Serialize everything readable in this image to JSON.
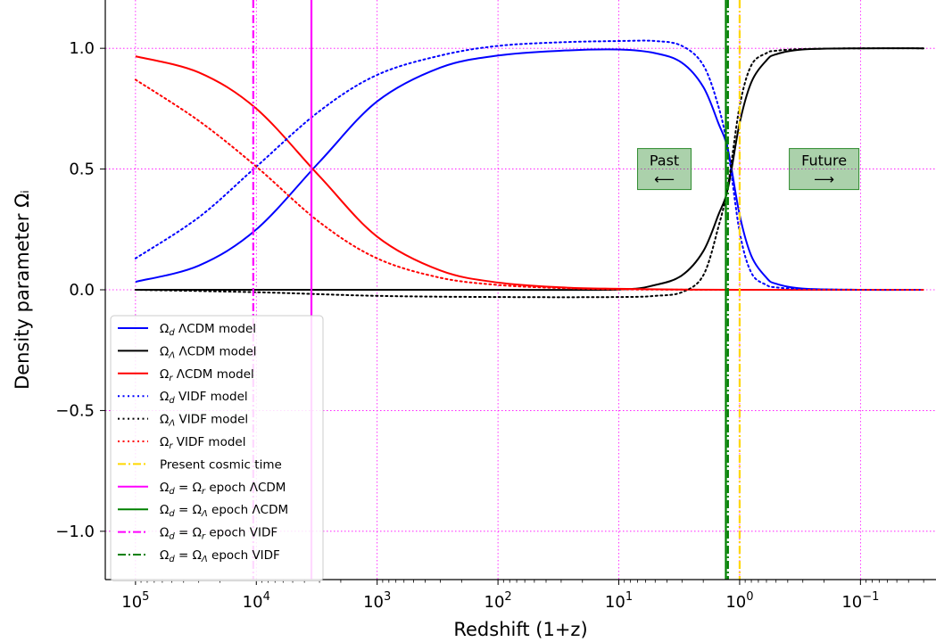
{
  "chart_data": {
    "type": "line",
    "xlabel": "Redshift (1+z)",
    "ylabel": "Density parameter Ωᵢ",
    "x_scale": "log",
    "x_reversed": true,
    "xlim": [
      177827.94,
      0.02371
    ],
    "ylim": [
      -1.2,
      1.2
    ],
    "grid": true,
    "grid_color": "#ff00ff",
    "legend_position": "lower-left",
    "x_ticks": [
      {
        "value": 100000,
        "base": "10",
        "exp": "5"
      },
      {
        "value": 10000,
        "base": "10",
        "exp": "4"
      },
      {
        "value": 1000,
        "base": "10",
        "exp": "3"
      },
      {
        "value": 100,
        "base": "10",
        "exp": "2"
      },
      {
        "value": 10,
        "base": "10",
        "exp": "1"
      },
      {
        "value": 1,
        "base": "10",
        "exp": "0"
      },
      {
        "value": 0.1,
        "base": "10",
        "exp": "−1"
      }
    ],
    "y_ticks": [
      {
        "value": 1.0,
        "label": "1.0"
      },
      {
        "value": 0.5,
        "label": "0.5"
      },
      {
        "value": 0.0,
        "label": "0.0"
      },
      {
        "value": -0.5,
        "label": "−0.5"
      },
      {
        "value": -1.0,
        "label": "−1.0"
      }
    ],
    "series": [
      {
        "name": "Ω_d ΛCDM model",
        "color": "#0000ff",
        "style": "solid",
        "x": [
          100000,
          30000,
          10000,
          3000,
          1000,
          300,
          100,
          30,
          10,
          5,
          3,
          2,
          1.5,
          1.25,
          1,
          0.8,
          0.6,
          0.5,
          0.3,
          0.1,
          0.03
        ],
        "y": [
          0.033,
          0.1,
          0.25,
          0.53,
          0.78,
          0.92,
          0.97,
          0.99,
          0.995,
          0.98,
          0.94,
          0.84,
          0.69,
          0.58,
          0.31,
          0.14,
          0.05,
          0.025,
          0.005,
          0.0,
          0.0
        ]
      },
      {
        "name": "Ω_Λ ΛCDM model",
        "color": "#000000",
        "style": "solid",
        "x": [
          100000,
          1000,
          100,
          10,
          5,
          3,
          2,
          1.5,
          1.25,
          1,
          0.8,
          0.6,
          0.5,
          0.3,
          0.1,
          0.03
        ],
        "y": [
          0.0,
          0.0,
          0.0,
          0.001,
          0.02,
          0.06,
          0.16,
          0.31,
          0.42,
          0.69,
          0.86,
          0.95,
          0.975,
          0.995,
          1.0,
          1.0
        ]
      },
      {
        "name": "Ω_r ΛCDM model",
        "color": "#ff0000",
        "style": "solid",
        "x": [
          100000,
          30000,
          10000,
          3000,
          1000,
          300,
          100,
          30,
          10,
          3,
          1,
          0.1,
          0.03
        ],
        "y": [
          0.967,
          0.9,
          0.75,
          0.47,
          0.22,
          0.08,
          0.03,
          0.01,
          0.004,
          0.001,
          0.0,
          0.0,
          0.0
        ]
      },
      {
        "name": "Ω_d VIDF model",
        "color": "#0000ff",
        "style": "dotted",
        "x": [
          100000,
          30000,
          10000,
          3000,
          1000,
          300,
          100,
          30,
          10,
          5,
          3,
          2,
          1.5,
          1.25,
          1,
          0.8,
          0.6,
          0.5,
          0.3,
          0.1,
          0.03
        ],
        "y": [
          0.13,
          0.3,
          0.51,
          0.74,
          0.89,
          0.97,
          1.01,
          1.025,
          1.03,
          1.03,
          1.01,
          0.93,
          0.76,
          0.58,
          0.24,
          0.07,
          0.02,
          0.01,
          0.003,
          0.0,
          0.0
        ]
      },
      {
        "name": "Ω_Λ VIDF model",
        "color": "#000000",
        "style": "dotted",
        "x": [
          100000,
          10000,
          1000,
          100,
          10,
          5,
          3,
          2,
          1.5,
          1.25,
          1,
          0.8,
          0.6,
          0.5,
          0.3,
          0.1,
          0.03
        ],
        "y": [
          0.0,
          -0.01,
          -0.025,
          -0.03,
          -0.03,
          -0.025,
          -0.01,
          0.06,
          0.26,
          0.43,
          0.76,
          0.93,
          0.98,
          0.99,
          0.997,
          1.0,
          1.0
        ]
      },
      {
        "name": "Ω_r VIDF model",
        "color": "#ff0000",
        "style": "dotted",
        "x": [
          100000,
          30000,
          10000,
          3000,
          1000,
          300,
          100,
          30,
          10,
          3,
          1,
          0.1,
          0.03
        ],
        "y": [
          0.87,
          0.7,
          0.51,
          0.28,
          0.13,
          0.05,
          0.02,
          0.007,
          0.002,
          0.0005,
          0.0,
          0.0,
          0.0
        ]
      }
    ],
    "vlines": [
      {
        "name": "Present cosmic time",
        "x": 1.0,
        "color": "#ffd700",
        "style": "dashdot"
      },
      {
        "name": "Ω_d = Ω_r epoch ΛCDM",
        "x": 3500,
        "color": "#ff00ff",
        "style": "solid"
      },
      {
        "name": "Ω_d = Ω_Λ epoch ΛCDM",
        "x": 1.3,
        "color": "#008000",
        "style": "solid"
      },
      {
        "name": "Ω_d = Ω_r epoch VIDF",
        "x": 10600,
        "color": "#ff00ff",
        "style": "dashdot"
      },
      {
        "name": "Ω_d = Ω_Λ epoch VIDF",
        "x": 1.25,
        "color": "#008000",
        "style": "dashdot"
      }
    ],
    "legend_entries": [
      {
        "sym": "Ω",
        "sub": "d",
        "text": " ΛCDM model",
        "color": "#0000ff",
        "style": "solid"
      },
      {
        "sym": "Ω",
        "sub": "Λ",
        "text": " ΛCDM model",
        "color": "#000000",
        "style": "solid"
      },
      {
        "sym": "Ω",
        "sub": "r",
        "text": " ΛCDM model",
        "color": "#ff0000",
        "style": "solid"
      },
      {
        "sym": "Ω",
        "sub": "d",
        "text": " VIDF model",
        "color": "#0000ff",
        "style": "dotted"
      },
      {
        "sym": "Ω",
        "sub": "Λ",
        "text": " VIDF model",
        "color": "#000000",
        "style": "dotted"
      },
      {
        "sym": "Ω",
        "sub": "r",
        "text": " VIDF model",
        "color": "#ff0000",
        "style": "dotted"
      },
      {
        "sym": "",
        "sub": "",
        "text": "Present cosmic time",
        "color": "#ffd700",
        "style": "dashdot"
      },
      {
        "sym": "Ω",
        "sub": "d",
        "text": " = Ω",
        "sub2": "r",
        "text2": " epoch ΛCDM",
        "color": "#ff00ff",
        "style": "solid"
      },
      {
        "sym": "Ω",
        "sub": "d",
        "text": " = Ω",
        "sub2": "Λ",
        "text2": " epoch ΛCDM",
        "color": "#008000",
        "style": "solid"
      },
      {
        "sym": "Ω",
        "sub": "d",
        "text": " = Ω",
        "sub2": "r",
        "text2": " epoch VIDF",
        "color": "#ff00ff",
        "style": "dashdot"
      },
      {
        "sym": "Ω",
        "sub": "d",
        "text": " = Ω",
        "sub2": "Λ",
        "text2": " epoch VIDF",
        "color": "#008000",
        "style": "dashdot"
      }
    ],
    "annotations": [
      {
        "label": "Past",
        "arrow": "⟵",
        "x": 4.2,
        "y": 0.5
      },
      {
        "label": "Future",
        "arrow": "⟶",
        "x": 0.2,
        "y": 0.5
      }
    ],
    "annotation_color": "#2e8b2e"
  }
}
